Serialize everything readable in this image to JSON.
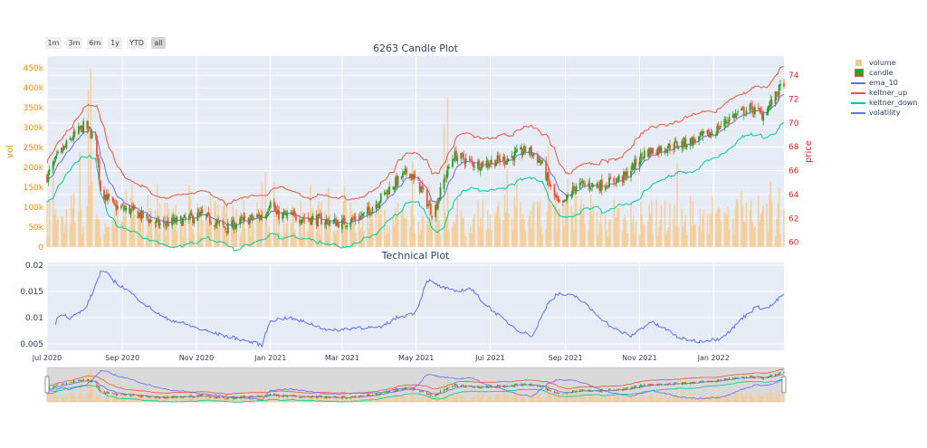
{
  "range_buttons": [
    {
      "label": "1m",
      "active": false
    },
    {
      "label": "3m",
      "active": false
    },
    {
      "label": "6m",
      "active": false
    },
    {
      "label": "1y",
      "active": false
    },
    {
      "label": "YTD",
      "active": false
    },
    {
      "label": "all",
      "active": true
    }
  ],
  "legend": [
    {
      "label": "volume",
      "kind": "bar",
      "color": "#f7c98a"
    },
    {
      "label": "candle",
      "kind": "candle",
      "color": "#2ca02c"
    },
    {
      "label": "ema_10",
      "kind": "line",
      "color": "#636efa"
    },
    {
      "label": "keltner_up",
      "kind": "line",
      "color": "#ef553b"
    },
    {
      "label": "keltner_down",
      "kind": "line",
      "color": "#00cc96"
    },
    {
      "label": "volatility",
      "kind": "line",
      "color": "#636efa"
    }
  ],
  "colors": {
    "plot_bg": "#e5ecf6",
    "increasing": "#2ca02c",
    "decreasing": "#ef553b",
    "volume": "#f7c98a",
    "ema": "#636efa",
    "kelt_up": "#ef553b",
    "kelt_down": "#00cc96",
    "volatility": "#636efa",
    "vol_axis": "#ff8c00",
    "price_axis": "#d62728",
    "rangeslider_bg": "#d9d9d9"
  },
  "chart_data": [
    {
      "type": "candlestick",
      "title": "6263 Candle Plot",
      "ylabel_left": "vol",
      "ylabel_right": "price",
      "y_left_ticks": [
        "0",
        "50k",
        "100k",
        "150k",
        "200k",
        "250k",
        "300k",
        "350k",
        "400k",
        "450k"
      ],
      "y_left_values": [
        0,
        50000,
        100000,
        150000,
        200000,
        250000,
        300000,
        350000,
        400000,
        450000
      ],
      "y_left_range": [
        0,
        480000
      ],
      "y_right_ticks": [
        "60",
        "62",
        "64",
        "66",
        "68",
        "70",
        "72",
        "74"
      ],
      "y_right_values": [
        60,
        62,
        64,
        66,
        68,
        70,
        72,
        74
      ],
      "y_right_range": [
        59.6,
        75.6
      ],
      "x_range": [
        "2020-07-01",
        "2022-02-28"
      ],
      "close_keypoints": [
        [
          "2020-07-01",
          65.5
        ],
        [
          "2020-07-10",
          67.2
        ],
        [
          "2020-07-22",
          68.8
        ],
        [
          "2020-08-01",
          69.8
        ],
        [
          "2020-08-10",
          68.6
        ],
        [
          "2020-08-14",
          64.5
        ],
        [
          "2020-08-25",
          63.0
        ],
        [
          "2020-09-10",
          62.6
        ],
        [
          "2020-10-01",
          61.5
        ],
        [
          "2020-10-20",
          61.8
        ],
        [
          "2020-11-05",
          62.3
        ],
        [
          "2020-11-25",
          61.2
        ],
        [
          "2020-12-10",
          61.8
        ],
        [
          "2020-12-28",
          62.3
        ],
        [
          "2021-01-01",
          63.7
        ],
        [
          "2021-01-06",
          62.3
        ],
        [
          "2021-02-01",
          62.0
        ],
        [
          "2021-03-01",
          61.6
        ],
        [
          "2021-03-20",
          62.3
        ],
        [
          "2021-04-10",
          64.6
        ],
        [
          "2021-04-25",
          66.0
        ],
        [
          "2021-05-05",
          64.5
        ],
        [
          "2021-05-15",
          62.3
        ],
        [
          "2021-05-25",
          65.5
        ],
        [
          "2021-06-01",
          67.3
        ],
        [
          "2021-06-20",
          66.5
        ],
        [
          "2021-07-15",
          67.0
        ],
        [
          "2021-08-01",
          67.8
        ],
        [
          "2021-08-12",
          66.7
        ],
        [
          "2021-08-20",
          64.5
        ],
        [
          "2021-08-28",
          62.8
        ],
        [
          "2021-09-10",
          64.8
        ],
        [
          "2021-10-01",
          64.8
        ],
        [
          "2021-10-20",
          65.5
        ],
        [
          "2021-11-05",
          67.5
        ],
        [
          "2021-11-25",
          68.0
        ],
        [
          "2021-12-15",
          68.5
        ],
        [
          "2022-01-01",
          69.2
        ],
        [
          "2022-01-15",
          70.5
        ],
        [
          "2022-02-01",
          71.2
        ],
        [
          "2022-02-10",
          70.7
        ],
        [
          "2022-02-20",
          72.0
        ],
        [
          "2022-02-28",
          73.5
        ]
      ],
      "volume_spikes": [
        [
          "2020-08-06",
          450000
        ],
        [
          "2020-08-04",
          395000
        ],
        [
          "2020-07-05",
          215000
        ],
        [
          "2020-07-28",
          240000
        ],
        [
          "2021-05-27",
          375000
        ],
        [
          "2021-05-24",
          310000
        ],
        [
          "2021-08-18",
          250000
        ],
        [
          "2020-12-25",
          160000
        ],
        [
          "2021-04-28",
          215000
        ],
        [
          "2021-09-03",
          170000
        ],
        [
          "2021-12-02",
          210000
        ],
        [
          "2022-02-24",
          150000
        ]
      ]
    },
    {
      "type": "line",
      "title": "Technical Plot",
      "series": [
        {
          "name": "volatility"
        }
      ],
      "y_ticks": [
        "0.005",
        "0.01",
        "0.015",
        "0.02"
      ],
      "y_values": [
        0.005,
        0.01,
        0.015,
        0.02
      ],
      "y_range": [
        0.0038,
        0.0205
      ],
      "keypoints": [
        [
          "2020-07-08",
          0.009
        ],
        [
          "2020-07-12",
          0.011
        ],
        [
          "2020-07-20",
          0.01
        ],
        [
          "2020-08-01",
          0.0115
        ],
        [
          "2020-08-08",
          0.015
        ],
        [
          "2020-08-15",
          0.0193
        ],
        [
          "2020-08-25",
          0.017
        ],
        [
          "2020-09-05",
          0.0152
        ],
        [
          "2020-09-20",
          0.0125
        ],
        [
          "2020-10-05",
          0.01
        ],
        [
          "2020-10-20",
          0.009
        ],
        [
          "2020-11-05",
          0.0077
        ],
        [
          "2020-11-20",
          0.0068
        ],
        [
          "2020-12-05",
          0.006
        ],
        [
          "2020-12-25",
          0.0048
        ],
        [
          "2021-01-01",
          0.0095
        ],
        [
          "2021-01-15",
          0.01
        ],
        [
          "2021-02-01",
          0.009
        ],
        [
          "2021-02-20",
          0.0075
        ],
        [
          "2021-03-15",
          0.0082
        ],
        [
          "2021-04-01",
          0.008
        ],
        [
          "2021-04-15",
          0.01
        ],
        [
          "2021-05-01",
          0.011
        ],
        [
          "2021-05-10",
          0.0172
        ],
        [
          "2021-05-20",
          0.016
        ],
        [
          "2021-06-01",
          0.015
        ],
        [
          "2021-06-15",
          0.0155
        ],
        [
          "2021-06-25",
          0.013
        ],
        [
          "2021-07-10",
          0.01
        ],
        [
          "2021-07-25",
          0.0075
        ],
        [
          "2021-08-05",
          0.0065
        ],
        [
          "2021-08-18",
          0.013
        ],
        [
          "2021-08-25",
          0.0145
        ],
        [
          "2021-09-10",
          0.014
        ],
        [
          "2021-09-25",
          0.011
        ],
        [
          "2021-10-10",
          0.008
        ],
        [
          "2021-10-25",
          0.0065
        ],
        [
          "2021-11-10",
          0.0092
        ],
        [
          "2021-11-25",
          0.0075
        ],
        [
          "2021-12-05",
          0.006
        ],
        [
          "2021-12-20",
          0.0055
        ],
        [
          "2022-01-05",
          0.006
        ],
        [
          "2022-01-15",
          0.0075
        ],
        [
          "2022-01-25",
          0.01
        ],
        [
          "2022-02-05",
          0.012
        ],
        [
          "2022-02-15",
          0.0118
        ],
        [
          "2022-02-28",
          0.0145
        ]
      ]
    }
  ],
  "x_ticks": [
    {
      "label": "Jul 2020",
      "date": "2020-07-01"
    },
    {
      "label": "Sep 2020",
      "date": "2020-09-01"
    },
    {
      "label": "Nov 2020",
      "date": "2020-11-01"
    },
    {
      "label": "Jan 2021",
      "date": "2021-01-01"
    },
    {
      "label": "Mar 2021",
      "date": "2021-03-01"
    },
    {
      "label": "May 2021",
      "date": "2021-05-01"
    },
    {
      "label": "Jul 2021",
      "date": "2021-07-01"
    },
    {
      "label": "Sep 2021",
      "date": "2021-09-01"
    },
    {
      "label": "Nov 2021",
      "date": "2021-11-01"
    },
    {
      "label": "Jan 2022",
      "date": "2022-01-01"
    }
  ]
}
